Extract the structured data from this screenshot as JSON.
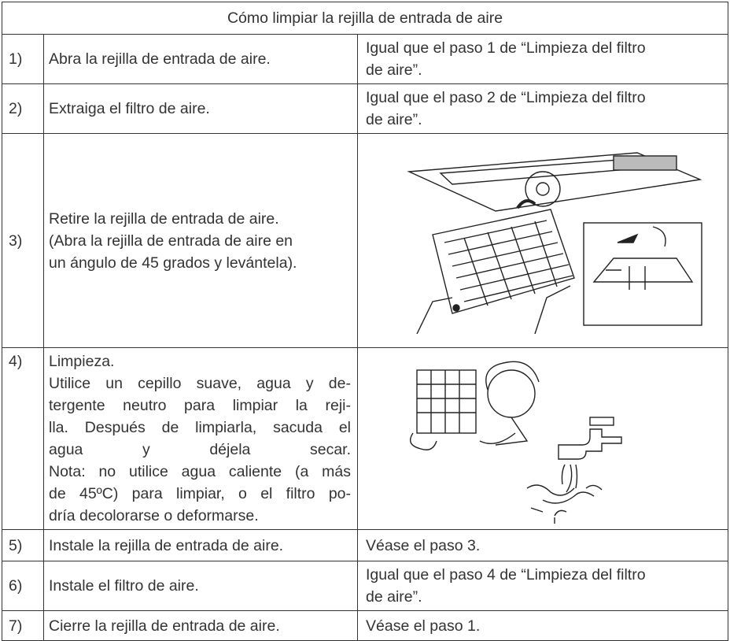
{
  "table": {
    "title": "Cómo limpiar la rejilla de entrada de aire",
    "rows": [
      {
        "number": "1)",
        "text": [
          "Abra la rejilla de entrada de aire."
        ],
        "right": [
          "Igual que el paso 1 de “Limpieza del filtro",
          "de aire”."
        ]
      },
      {
        "number": "2)",
        "text": [
          "Extraiga el filtro de aire."
        ],
        "right": [
          "Igual que el paso 2 de “Limpieza del filtro",
          "de aire”."
        ]
      },
      {
        "number": "3)",
        "text": [
          "Retire la rejilla de entrada de aire.",
          "(Abra la rejilla de entrada de aire en",
          "un ángulo de 45 grados y levántela)."
        ]
      },
      {
        "number": "4)",
        "text": [
          "Limpieza.",
          "Utilice un cepillo suave, agua y de-",
          "tergente neutro para limpiar la reji-",
          "lla. Después de limpiarla, sacuda el",
          "agua y déjela secar.",
          "Nota: no utilice agua caliente (a más",
          "de 45ºC) para limpiar, o el filtro po-",
          "dría decolorarse o deformarse."
        ]
      },
      {
        "number": "5)",
        "text": [
          "Instale la rejilla de entrada de aire."
        ],
        "right": [
          "Véase el paso 3."
        ]
      },
      {
        "number": "6)",
        "text": [
          "Instale el filtro de aire."
        ],
        "right": [
          "Igual que el paso 4 de “Limpieza del filtro",
          "de aire”."
        ]
      },
      {
        "number": "7)",
        "text": [
          "Cierre la rejilla de entrada de aire."
        ],
        "right": [
          "Véase el paso 1."
        ]
      }
    ]
  }
}
